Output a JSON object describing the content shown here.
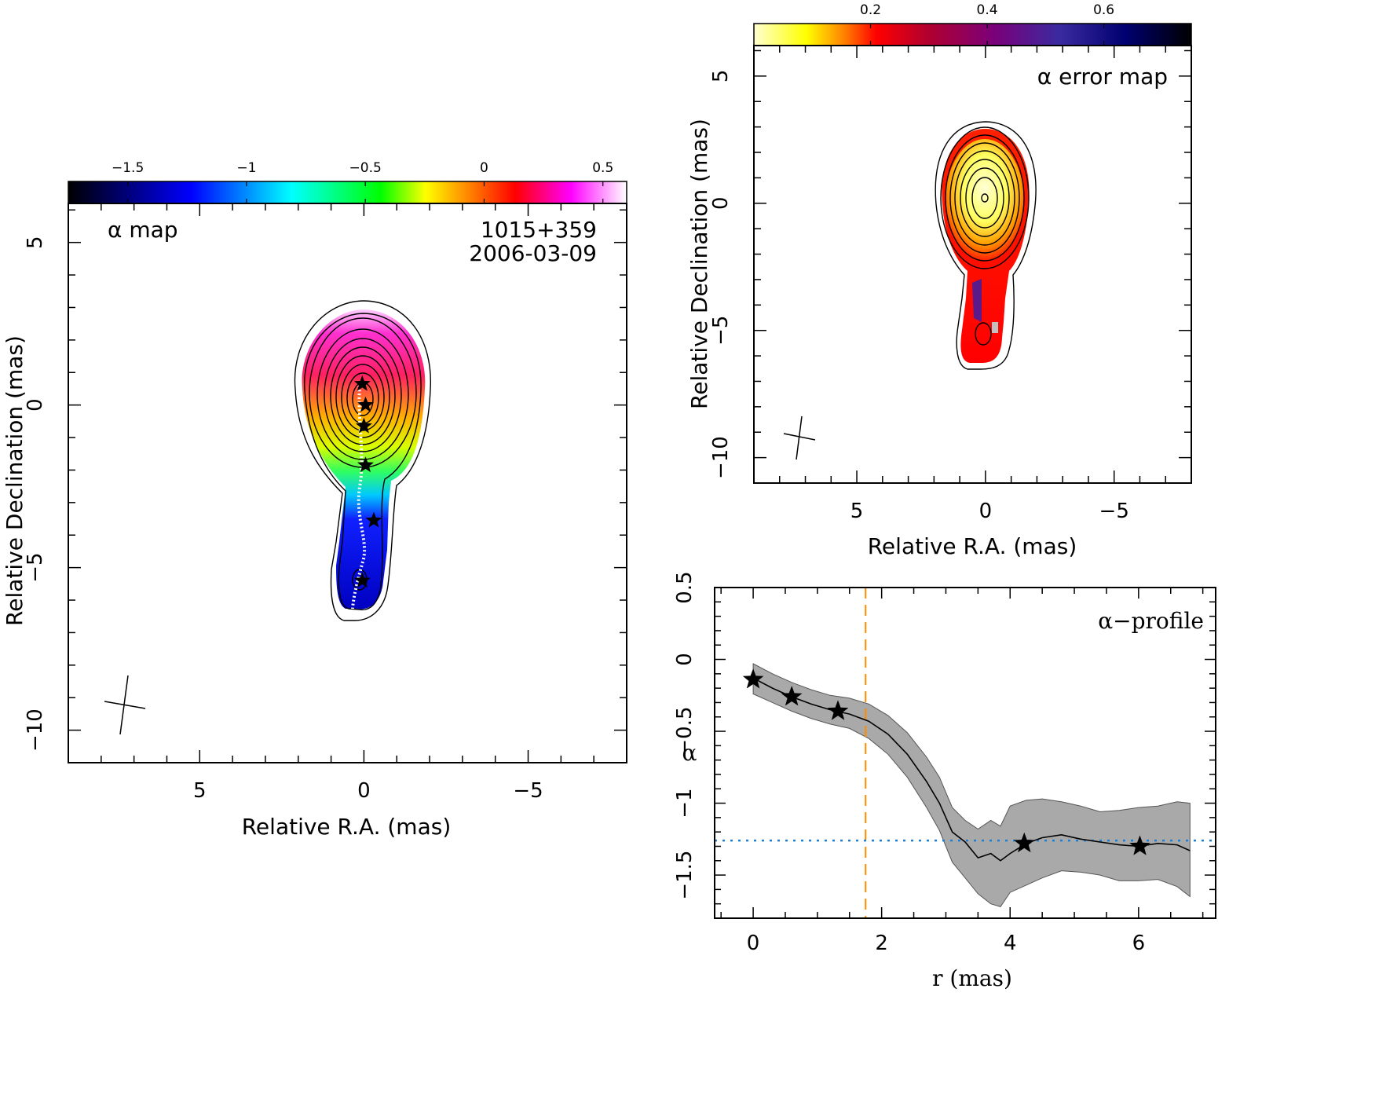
{
  "alpha_map": {
    "label": "α map",
    "source": "1015+359",
    "date": "2006-03-09",
    "xlabel": "Relative R.A. (mas)",
    "ylabel": "Relative Declination (mas)",
    "colorbar_ticks": [
      "−1.5",
      "−1",
      "−0.5",
      "0",
      "0.5"
    ],
    "x_ticks": [
      "5",
      "0",
      "−5"
    ],
    "y_ticks": [
      "5",
      "0",
      "−5",
      "−10"
    ]
  },
  "error_map": {
    "label": "α error map",
    "xlabel": "Relative R.A. (mas)",
    "ylabel": "Relative Declination (mas)",
    "colorbar_ticks": [
      "0.2",
      "0.4",
      "0.6"
    ],
    "x_ticks": [
      "5",
      "0",
      "−5"
    ],
    "y_ticks": [
      "5",
      "0",
      "−5",
      "−10"
    ]
  },
  "profile": {
    "label": "α−profile",
    "xlabel": "r (mas)",
    "ylabel": "α",
    "x_ticks": [
      "0",
      "2",
      "4",
      "6"
    ],
    "y_ticks": [
      "0.5",
      "0",
      "−0.5",
      "−1",
      "−1.5"
    ]
  },
  "colors": {
    "band_fill": "#a9a9a9",
    "vline": "#ff8c00",
    "hline": "#1e7fd6",
    "alpha_cmap": [
      "#000000",
      "#0000ff",
      "#00ffff",
      "#00ff00",
      "#ffff00",
      "#ff8000",
      "#ff0000",
      "#ff00ff",
      "#ffffff"
    ],
    "error_cmap": [
      "#ffffcc",
      "#ffff00",
      "#ff8c00",
      "#ff0000",
      "#b0002a",
      "#7a007a",
      "#3a1a9a",
      "#000080",
      "#000000"
    ]
  },
  "chart_data": [
    {
      "type": "heatmap",
      "title": "α map",
      "xlabel": "Relative R.A. (mas)",
      "ylabel": "Relative Declination (mas)",
      "xlim": [
        9,
        -8
      ],
      "ylim": [
        -11,
        6.2
      ],
      "colorbar_range": [
        -1.75,
        0.6
      ],
      "colorbar_ticks": [
        -1.5,
        -1,
        -0.5,
        0,
        0.5
      ],
      "markers": [
        {
          "x": 0.05,
          "y": 0.65
        },
        {
          "x": -0.05,
          "y": 0.0
        },
        {
          "x": 0.0,
          "y": -0.65
        },
        {
          "x": -0.05,
          "y": -1.85
        },
        {
          "x": -0.3,
          "y": -3.55
        },
        {
          "x": 0.05,
          "y": -5.4
        }
      ]
    },
    {
      "type": "heatmap",
      "title": "α error map",
      "xlabel": "Relative R.A. (mas)",
      "ylabel": "Relative Declination (mas)",
      "xlim": [
        9,
        -8
      ],
      "ylim": [
        -11,
        6.2
      ],
      "colorbar_range": [
        0.0,
        0.75
      ],
      "colorbar_ticks": [
        0.2,
        0.4,
        0.6
      ]
    },
    {
      "type": "line",
      "title": "α−profile",
      "xlabel": "r (mas)",
      "ylabel": "α",
      "xlim": [
        -0.6,
        7.2
      ],
      "ylim": [
        -1.8,
        0.5
      ],
      "x": [
        0,
        0.3,
        0.6,
        0.9,
        1.2,
        1.5,
        1.8,
        2.1,
        2.4,
        2.7,
        2.9,
        3.1,
        3.3,
        3.5,
        3.7,
        3.85,
        4.0,
        4.25,
        4.5,
        4.8,
        5.1,
        5.4,
        5.7,
        6.0,
        6.3,
        6.6,
        6.8
      ],
      "series": [
        {
          "name": "",
          "values": [
            -0.13,
            -0.2,
            -0.26,
            -0.31,
            -0.35,
            -0.38,
            -0.43,
            -0.52,
            -0.66,
            -0.85,
            -1.0,
            -1.2,
            -1.27,
            -1.38,
            -1.35,
            -1.4,
            -1.35,
            -1.28,
            -1.24,
            -1.22,
            -1.25,
            -1.27,
            -1.29,
            -1.3,
            -1.28,
            -1.29,
            -1.33
          ]
        }
      ],
      "band_upper": [
        -0.03,
        -0.1,
        -0.16,
        -0.21,
        -0.25,
        -0.27,
        -0.31,
        -0.39,
        -0.51,
        -0.68,
        -0.82,
        -1.03,
        -1.12,
        -1.18,
        -1.12,
        -1.16,
        -1.02,
        -0.98,
        -0.97,
        -0.99,
        -1.02,
        -1.06,
        -1.05,
        -1.03,
        -1.02,
        -0.99,
        -1.0
      ],
      "band_lower": [
        -0.24,
        -0.3,
        -0.36,
        -0.41,
        -0.45,
        -0.48,
        -0.55,
        -0.66,
        -0.82,
        -1.03,
        -1.19,
        -1.41,
        -1.52,
        -1.63,
        -1.7,
        -1.72,
        -1.62,
        -1.57,
        -1.52,
        -1.47,
        -1.48,
        -1.5,
        -1.54,
        -1.54,
        -1.53,
        -1.58,
        -1.65
      ],
      "stars": [
        {
          "x": 0.0,
          "y": -0.14
        },
        {
          "x": 0.6,
          "y": -0.26
        },
        {
          "x": 1.32,
          "y": -0.36
        },
        {
          "x": 4.22,
          "y": -1.28
        },
        {
          "x": 6.02,
          "y": -1.3
        }
      ],
      "vline_x": 1.75,
      "hline_y": -1.26
    }
  ]
}
